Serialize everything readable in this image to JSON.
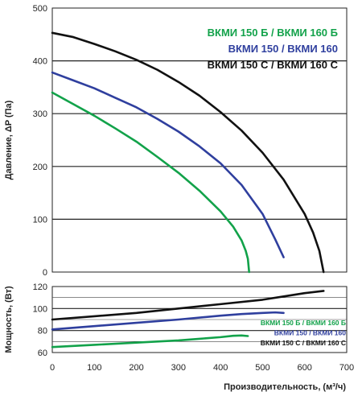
{
  "chart_data": [
    {
      "type": "line",
      "ylabel": "Давление, ΔP (Па)",
      "xlabel": "",
      "xlim": [
        0,
        700
      ],
      "ylim": [
        0,
        500
      ],
      "xticks": [
        0,
        100,
        200,
        300,
        400,
        500,
        600,
        700
      ],
      "yticks": [
        0,
        100,
        200,
        300,
        400,
        500
      ],
      "grid": "horizontal",
      "legend_position": "top-right",
      "series": [
        {
          "name": "ВКМИ 150 Б / ВКМИ 160 Б",
          "color": "#12a24a",
          "x": [
            0,
            50,
            100,
            150,
            200,
            250,
            300,
            350,
            400,
            430,
            450,
            460,
            465,
            468
          ],
          "y": [
            340,
            318,
            296,
            272,
            247,
            218,
            188,
            154,
            115,
            86,
            60,
            40,
            25,
            0
          ]
        },
        {
          "name": "ВКМИ 150 / ВКМИ 160",
          "color": "#2f3f9e",
          "x": [
            0,
            50,
            100,
            150,
            200,
            250,
            300,
            350,
            400,
            450,
            500,
            530,
            550
          ],
          "y": [
            378,
            363,
            348,
            330,
            312,
            290,
            266,
            238,
            206,
            165,
            110,
            62,
            28
          ]
        },
        {
          "name": "ВКМИ 150 С / ВКМИ 160 С",
          "color": "#111111",
          "x": [
            0,
            50,
            100,
            150,
            200,
            250,
            300,
            350,
            400,
            450,
            500,
            550,
            600,
            620,
            635,
            645
          ],
          "y": [
            453,
            445,
            432,
            418,
            402,
            383,
            360,
            334,
            303,
            268,
            226,
            175,
            110,
            75,
            40,
            0
          ]
        }
      ]
    },
    {
      "type": "line",
      "ylabel": "Мощность, (Вт)",
      "xlabel": "Производительность, (м³/ч)",
      "xlim": [
        0,
        700
      ],
      "ylim": [
        60,
        120
      ],
      "xticks": [
        0,
        100,
        200,
        300,
        400,
        500,
        600,
        700
      ],
      "yticks": [
        60,
        80,
        100,
        120
      ],
      "grid": "horizontal",
      "legend_position": "right",
      "series": [
        {
          "name": "ВКМИ 150 Б / ВКМИ 160 Б",
          "color": "#12a24a",
          "x": [
            0,
            100,
            200,
            300,
            350,
            400,
            430,
            450,
            465
          ],
          "y": [
            65,
            67,
            69,
            71,
            72.5,
            74,
            75.2,
            75.5,
            75
          ]
        },
        {
          "name": "ВКМИ 150 / ВКМИ 160",
          "color": "#2f3f9e",
          "x": [
            0,
            100,
            200,
            300,
            400,
            450,
            500,
            530,
            550
          ],
          "y": [
            81,
            84,
            87,
            90,
            93.5,
            95,
            96,
            96.5,
            96
          ]
        },
        {
          "name": "ВКМИ 150 С / ВКМИ 160 С",
          "color": "#111111",
          "x": [
            0,
            100,
            200,
            300,
            400,
            500,
            550,
            600,
            645
          ],
          "y": [
            90,
            93,
            96,
            100,
            104,
            108,
            111,
            114,
            116
          ]
        }
      ]
    }
  ]
}
